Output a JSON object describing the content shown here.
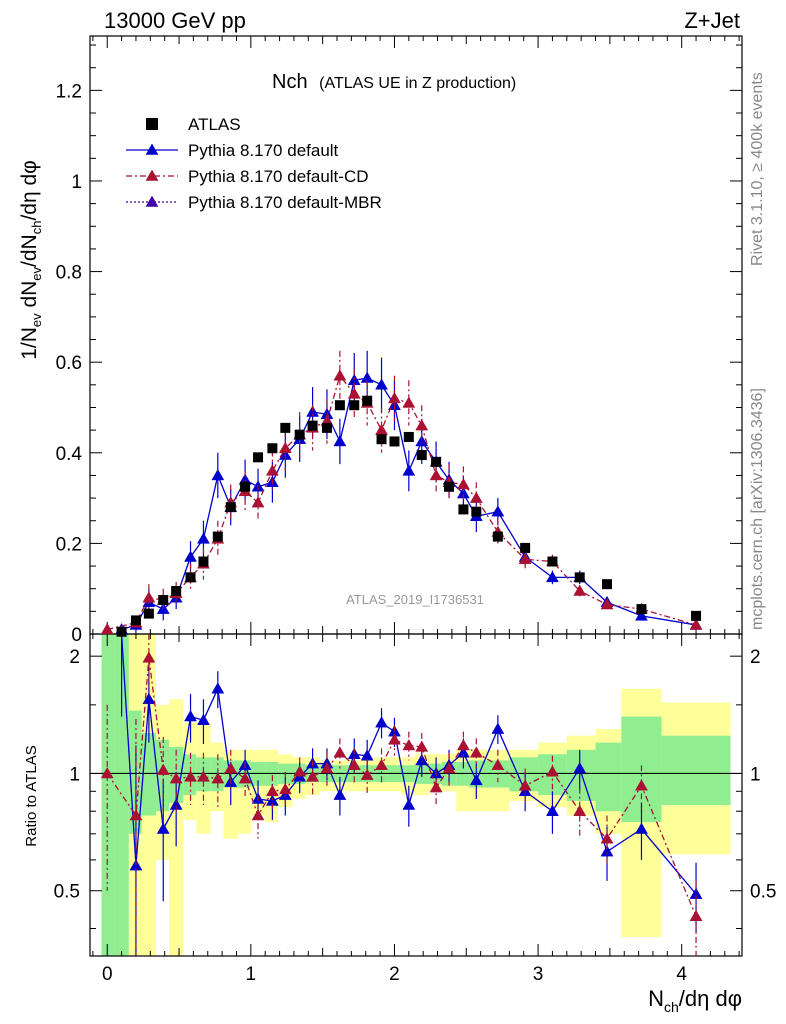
{
  "header": {
    "left_label": "13000 GeV pp",
    "right_label": "Z+Jet",
    "side_label_rivet": "Rivet 3.1.10, ≥ 400k events",
    "side_label_mcplots": "mcplots.cern.ch [arXiv:1306.3436]",
    "analysis_id": "ATLAS_2019_I1736531"
  },
  "chart_data": {
    "type": "scatter",
    "title_main": "Nch",
    "title_sub": "(ATLAS UE in Z production)",
    "xlabel": "N_ch/dη dφ",
    "ylabel": "1/N_ev dN_ev/dN_ch/dη dφ",
    "ratio_ylabel": "Ratio to ATLAS",
    "xlim": [
      -0.12,
      4.42
    ],
    "ylim": [
      0,
      1.32
    ],
    "ratio_ylim": [
      0.34,
      2.28
    ],
    "xticks": [
      0,
      1,
      2,
      3,
      4
    ],
    "yticks": [
      0,
      0.2,
      0.4,
      0.6,
      0.8,
      1,
      1.2
    ],
    "ytick_labels": [
      "0",
      "0.2",
      "0.4",
      "0.6",
      "0.8",
      "1",
      "1.2"
    ],
    "ratio_yticks": [
      0.5,
      1,
      2
    ],
    "ratio_ytick_labels": [
      "0.5",
      "1",
      "2"
    ],
    "colors": {
      "atlas": "#000000",
      "default": "#0000cc",
      "cd": "#aa1133",
      "mbr": "#4400aa",
      "band_green": "#90ee90",
      "band_yellow": "#ffff99"
    },
    "legend": [
      {
        "key": "atlas",
        "label": "ATLAS"
      },
      {
        "key": "default",
        "label": "Pythia 8.170 default"
      },
      {
        "key": "cd",
        "label": "Pythia 8.170 default-CD"
      },
      {
        "key": "mbr",
        "label": "Pythia 8.170 default-MBR"
      }
    ],
    "atlas": {
      "x": [
        0.1,
        0.2,
        0.29,
        0.39,
        0.48,
        0.58,
        0.67,
        0.77,
        0.86,
        0.96,
        1.05,
        1.15,
        1.24,
        1.34,
        1.43,
        1.53,
        1.62,
        1.72,
        1.81,
        1.91,
        2.0,
        2.1,
        2.19,
        2.29,
        2.38,
        2.48,
        2.57,
        2.72,
        2.91,
        3.1,
        3.29,
        3.48,
        3.72,
        4.1
      ],
      "y": [
        0.005,
        0.03,
        0.045,
        0.075,
        0.095,
        0.125,
        0.16,
        0.215,
        0.28,
        0.325,
        0.39,
        0.41,
        0.455,
        0.44,
        0.46,
        0.455,
        0.505,
        0.505,
        0.515,
        0.43,
        0.425,
        0.435,
        0.395,
        0.38,
        0.325,
        0.275,
        0.27,
        0.215,
        0.19,
        0.16,
        0.125,
        0.11,
        0.055,
        0.04
      ]
    },
    "series": [
      {
        "name": "Pythia 8.170 default",
        "key": "default",
        "x": [
          0.1,
          0.2,
          0.29,
          0.39,
          0.48,
          0.58,
          0.67,
          0.77,
          0.86,
          0.96,
          1.05,
          1.15,
          1.24,
          1.34,
          1.43,
          1.53,
          1.62,
          1.72,
          1.81,
          1.91,
          2.0,
          2.1,
          2.19,
          2.29,
          2.38,
          2.48,
          2.57,
          2.72,
          2.91,
          3.1,
          3.29,
          3.48,
          3.72,
          4.1
        ],
        "y": [
          0.01,
          0.02,
          0.07,
          0.055,
          0.08,
          0.17,
          0.21,
          0.35,
          0.28,
          0.34,
          0.325,
          0.335,
          0.395,
          0.43,
          0.49,
          0.485,
          0.425,
          0.56,
          0.565,
          0.55,
          0.505,
          0.36,
          0.425,
          0.38,
          0.34,
          0.31,
          0.26,
          0.27,
          0.17,
          0.125,
          0.125,
          0.07,
          0.04,
          0.02
        ],
        "err": [
          0.01,
          0.015,
          0.03,
          0.025,
          0.025,
          0.035,
          0.04,
          0.05,
          0.04,
          0.045,
          0.04,
          0.045,
          0.05,
          0.05,
          0.055,
          0.055,
          0.05,
          0.06,
          0.06,
          0.06,
          0.055,
          0.045,
          0.05,
          0.045,
          0.04,
          0.04,
          0.035,
          0.03,
          0.02,
          0.015,
          0.015,
          0.01,
          0.008,
          0.005
        ],
        "ratio": [
          2.3,
          0.58,
          1.55,
          0.72,
          0.83,
          1.4,
          1.37,
          1.65,
          0.95,
          1.05,
          0.86,
          0.85,
          0.88,
          0.98,
          1.06,
          1.06,
          0.88,
          1.12,
          1.11,
          1.35,
          1.28,
          0.83,
          1.08,
          1.0,
          1.05,
          1.13,
          0.96,
          1.3,
          0.9,
          0.8,
          1.03,
          0.63,
          0.72,
          0.49
        ],
        "ratio_err": [
          0.9,
          0.6,
          0.35,
          0.25,
          0.18,
          0.2,
          0.18,
          0.18,
          0.12,
          0.1,
          0.1,
          0.09,
          0.1,
          0.09,
          0.1,
          0.1,
          0.1,
          0.11,
          0.11,
          0.12,
          0.11,
          0.1,
          0.1,
          0.1,
          0.1,
          0.1,
          0.1,
          0.11,
          0.1,
          0.1,
          0.12,
          0.1,
          0.12,
          0.1
        ],
        "style": "solid"
      },
      {
        "name": "Pythia 8.170 default-CD",
        "key": "cd",
        "x": [
          0.0,
          0.2,
          0.29,
          0.39,
          0.48,
          0.58,
          0.67,
          0.77,
          0.86,
          0.96,
          1.05,
          1.15,
          1.24,
          1.34,
          1.43,
          1.53,
          1.62,
          1.72,
          1.81,
          1.91,
          2.0,
          2.1,
          2.19,
          2.29,
          2.38,
          2.48,
          2.57,
          2.72,
          2.91,
          3.1,
          3.29,
          3.48,
          3.72,
          4.1
        ],
        "y": [
          0.01,
          0.025,
          0.08,
          0.075,
          0.09,
          0.125,
          0.155,
          0.21,
          0.29,
          0.315,
          0.29,
          0.36,
          0.41,
          0.44,
          0.455,
          0.47,
          0.57,
          0.53,
          0.51,
          0.45,
          0.52,
          0.51,
          0.46,
          0.35,
          0.335,
          0.33,
          0.3,
          0.225,
          0.165,
          0.16,
          0.095,
          0.065,
          0.055,
          0.02
        ],
        "err": [
          0.01,
          0.015,
          0.03,
          0.025,
          0.025,
          0.03,
          0.035,
          0.04,
          0.04,
          0.045,
          0.04,
          0.045,
          0.05,
          0.05,
          0.05,
          0.05,
          0.055,
          0.055,
          0.05,
          0.05,
          0.05,
          0.05,
          0.045,
          0.04,
          0.04,
          0.04,
          0.035,
          0.03,
          0.02,
          0.015,
          0.012,
          0.01,
          0.008,
          0.005
        ],
        "ratio": [
          1.0,
          0.78,
          1.98,
          1.02,
          0.97,
          0.98,
          0.98,
          0.97,
          1.03,
          0.97,
          0.78,
          0.9,
          0.91,
          1.01,
          0.98,
          1.03,
          1.13,
          1.05,
          0.99,
          1.05,
          1.22,
          1.18,
          1.17,
          0.92,
          1.03,
          1.18,
          1.13,
          1.05,
          0.93,
          1.01,
          0.8,
          0.68,
          0.93,
          0.43
        ],
        "ratio_err": [
          0.5,
          0.6,
          0.35,
          0.22,
          0.18,
          0.15,
          0.15,
          0.15,
          0.12,
          0.1,
          0.1,
          0.09,
          0.1,
          0.09,
          0.1,
          0.1,
          0.1,
          0.11,
          0.1,
          0.11,
          0.11,
          0.1,
          0.1,
          0.1,
          0.1,
          0.1,
          0.1,
          0.1,
          0.1,
          0.1,
          0.12,
          0.1,
          0.12,
          0.1
        ],
        "style": "dashdot"
      },
      {
        "name": "Pythia 8.170 default-MBR",
        "key": "mbr",
        "x": [],
        "y": [],
        "err": [],
        "ratio": [],
        "ratio_err": [],
        "style": "dotted"
      }
    ],
    "ratio_bands": [
      {
        "x0": -0.04,
        "x1": 0.05,
        "g": [
          0.34,
          2.28
        ],
        "yl": [
          0.34,
          2.28
        ]
      },
      {
        "x0": 0.05,
        "x1": 0.15,
        "g": [
          0.34,
          2.28
        ],
        "yl": [
          0.34,
          2.28
        ]
      },
      {
        "x0": 0.15,
        "x1": 0.24,
        "g": [
          0.7,
          1.45
        ],
        "yl": [
          0.34,
          2.28
        ]
      },
      {
        "x0": 0.24,
        "x1": 0.34,
        "g": [
          0.78,
          1.27
        ],
        "yl": [
          0.34,
          2.28
        ]
      },
      {
        "x0": 0.34,
        "x1": 0.43,
        "g": [
          0.8,
          1.22
        ],
        "yl": [
          0.6,
          1.5
        ]
      },
      {
        "x0": 0.43,
        "x1": 0.53,
        "g": [
          0.84,
          1.17
        ],
        "yl": [
          0.34,
          1.55
        ]
      },
      {
        "x0": 0.53,
        "x1": 0.62,
        "g": [
          0.88,
          1.12
        ],
        "yl": [
          0.76,
          1.35
        ]
      },
      {
        "x0": 0.62,
        "x1": 0.72,
        "g": [
          0.9,
          1.1
        ],
        "yl": [
          0.7,
          1.35
        ]
      },
      {
        "x0": 0.72,
        "x1": 0.81,
        "g": [
          0.9,
          1.1
        ],
        "yl": [
          0.8,
          1.2
        ]
      },
      {
        "x0": 0.81,
        "x1": 0.91,
        "g": [
          0.92,
          1.08
        ],
        "yl": [
          0.68,
          1.15
        ]
      },
      {
        "x0": 0.91,
        "x1": 1.0,
        "g": [
          0.92,
          1.08
        ],
        "yl": [
          0.7,
          1.15
        ]
      },
      {
        "x0": 1.0,
        "x1": 1.1,
        "g": [
          0.93,
          1.07
        ],
        "yl": [
          0.78,
          1.15
        ]
      },
      {
        "x0": 1.1,
        "x1": 1.19,
        "g": [
          0.93,
          1.07
        ],
        "yl": [
          0.75,
          1.15
        ]
      },
      {
        "x0": 1.19,
        "x1": 1.29,
        "g": [
          0.94,
          1.06
        ],
        "yl": [
          0.82,
          1.12
        ]
      },
      {
        "x0": 1.29,
        "x1": 1.38,
        "g": [
          0.94,
          1.06
        ],
        "yl": [
          0.86,
          1.1
        ]
      },
      {
        "x0": 1.38,
        "x1": 1.48,
        "g": [
          0.95,
          1.05
        ],
        "yl": [
          0.88,
          1.1
        ]
      },
      {
        "x0": 1.48,
        "x1": 1.57,
        "g": [
          0.95,
          1.05
        ],
        "yl": [
          0.9,
          1.08
        ]
      },
      {
        "x0": 1.57,
        "x1": 1.67,
        "g": [
          0.95,
          1.05
        ],
        "yl": [
          0.9,
          1.08
        ]
      },
      {
        "x0": 1.67,
        "x1": 1.76,
        "g": [
          0.95,
          1.05
        ],
        "yl": [
          0.9,
          1.08
        ]
      },
      {
        "x0": 1.76,
        "x1": 1.86,
        "g": [
          0.95,
          1.05
        ],
        "yl": [
          0.9,
          1.08
        ]
      },
      {
        "x0": 1.86,
        "x1": 1.95,
        "g": [
          0.95,
          1.05
        ],
        "yl": [
          0.9,
          1.1
        ]
      },
      {
        "x0": 1.95,
        "x1": 2.05,
        "g": [
          0.95,
          1.05
        ],
        "yl": [
          0.9,
          1.1
        ]
      },
      {
        "x0": 2.05,
        "x1": 2.14,
        "g": [
          0.95,
          1.05
        ],
        "yl": [
          0.88,
          1.1
        ]
      },
      {
        "x0": 2.14,
        "x1": 2.24,
        "g": [
          0.94,
          1.06
        ],
        "yl": [
          0.88,
          1.12
        ]
      },
      {
        "x0": 2.24,
        "x1": 2.33,
        "g": [
          0.94,
          1.06
        ],
        "yl": [
          0.9,
          1.12
        ]
      },
      {
        "x0": 2.33,
        "x1": 2.43,
        "g": [
          0.93,
          1.07
        ],
        "yl": [
          0.9,
          1.12
        ]
      },
      {
        "x0": 2.43,
        "x1": 2.52,
        "g": [
          0.93,
          1.07
        ],
        "yl": [
          0.8,
          1.15
        ]
      },
      {
        "x0": 2.52,
        "x1": 2.8,
        "g": [
          0.92,
          1.08
        ],
        "yl": [
          0.8,
          1.15
        ]
      },
      {
        "x0": 2.8,
        "x1": 3.0,
        "g": [
          0.9,
          1.1
        ],
        "yl": [
          0.85,
          1.15
        ]
      },
      {
        "x0": 3.0,
        "x1": 3.2,
        "g": [
          0.88,
          1.12
        ],
        "yl": [
          0.82,
          1.2
        ]
      },
      {
        "x0": 3.2,
        "x1": 3.4,
        "g": [
          0.85,
          1.15
        ],
        "yl": [
          0.78,
          1.25
        ]
      },
      {
        "x0": 3.4,
        "x1": 3.58,
        "g": [
          0.8,
          1.2
        ],
        "yl": [
          0.7,
          1.3
        ]
      },
      {
        "x0": 3.58,
        "x1": 3.86,
        "g": [
          0.75,
          1.4
        ],
        "yl": [
          0.38,
          1.65
        ]
      },
      {
        "x0": 3.86,
        "x1": 4.34,
        "g": [
          0.83,
          1.25
        ],
        "yl": [
          0.62,
          1.52
        ]
      }
    ]
  }
}
